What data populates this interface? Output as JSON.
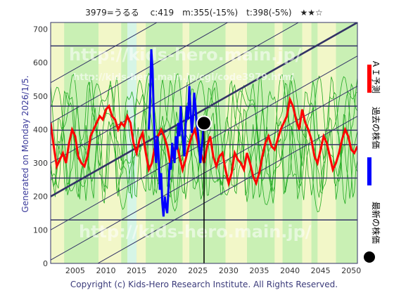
{
  "header": {
    "title": "3979=うるる　 c:419　m:355(-15%)　t:398(-5%)　★★☆"
  },
  "side_label": "Generated on Monday 2026/1/5.",
  "footer": "Copyright (c) Kids-Hero Research Institute. All Rights Reserved.",
  "watermarks": [
    "http://kids-hero.main.jp/",
    "http://kids-hero.main.jp/cgi/code3979.html",
    "http://kids-hero.main.jp/"
  ],
  "legend": [
    {
      "label": "ＡＩ予測",
      "color": "#ff0000"
    },
    {
      "label": "過去の株価",
      "color": "#0000ff"
    },
    {
      "label": "最新の株価",
      "color": "#000000"
    }
  ],
  "colors": {
    "plot_bg": "#c9f0b4",
    "band_light": "#f2f7c8",
    "band_cyan": "#d6f5e6",
    "grid": "#333366",
    "green_line": "#22aa22",
    "prediction": "#ff0000",
    "history": "#0000ff",
    "latest": "#000000"
  },
  "chart_data": {
    "type": "line",
    "x_ticks": [
      2005,
      2010,
      2015,
      2020,
      2025,
      2030,
      2035,
      2040,
      2045,
      2050
    ],
    "y_ticks": [
      0,
      100,
      200,
      300,
      400,
      500,
      600,
      700
    ],
    "xlim": [
      2001.0,
      2051.0
    ],
    "ylim": [
      0,
      720
    ],
    "horizontal_lines": [
      130,
      255,
      355,
      398,
      470,
      650
    ],
    "latest": {
      "x": 2026.0,
      "y": 419
    },
    "series": [
      {
        "name": "ＡＩ予測",
        "x": [
          2001.0,
          2001.5,
          2002.0,
          2002.5,
          2003.0,
          2003.5,
          2004.0,
          2004.5,
          2005.0,
          2005.5,
          2006.0,
          2006.5,
          2007.0,
          2007.5,
          2008.0,
          2008.5,
          2009.0,
          2009.5,
          2010.0,
          2010.5,
          2011.0,
          2011.5,
          2012.0,
          2012.5,
          2013.0,
          2013.5,
          2014.0,
          2014.5,
          2015.0,
          2015.5,
          2016.0,
          2016.5,
          2017.0,
          2017.5,
          2018.0,
          2018.5,
          2019.0,
          2019.5,
          2020.0,
          2020.5,
          2021.0,
          2021.5,
          2022.0,
          2022.5,
          2023.0,
          2023.5,
          2024.0,
          2024.5,
          2025.0,
          2025.5,
          2026.0,
          2026.5,
          2027.0,
          2027.5,
          2028.0,
          2028.5,
          2029.0,
          2029.5,
          2030.0,
          2030.5,
          2031.0,
          2031.5,
          2032.0,
          2032.5,
          2033.0,
          2033.5,
          2034.0,
          2034.5,
          2035.0,
          2035.5,
          2036.0,
          2036.5,
          2037.0,
          2037.5,
          2038.0,
          2038.5,
          2039.0,
          2039.5,
          2040.0,
          2040.5,
          2041.0,
          2041.5,
          2042.0,
          2042.5,
          2043.0,
          2043.5,
          2044.0,
          2044.5,
          2045.0,
          2045.5,
          2046.0,
          2046.5,
          2047.0,
          2047.5,
          2048.0,
          2048.5,
          2049.0,
          2049.5,
          2050.0,
          2050.5,
          2051.0
        ],
        "values": [
          420,
          350,
          290,
          310,
          330,
          300,
          360,
          400,
          380,
          320,
          300,
          290,
          320,
          380,
          400,
          420,
          440,
          430,
          460,
          470,
          440,
          430,
          400,
          420,
          410,
          440,
          420,
          360,
          330,
          370,
          390,
          330,
          280,
          300,
          350,
          380,
          400,
          380,
          350,
          300,
          330,
          360,
          320,
          280,
          310,
          350,
          380,
          400,
          360,
          330,
          300,
          350,
          380,
          320,
          290,
          320,
          330,
          280,
          240,
          270,
          330,
          310,
          300,
          280,
          330,
          300,
          260,
          240,
          270,
          320,
          360,
          380,
          350,
          340,
          370,
          400,
          420,
          440,
          490,
          470,
          430,
          400,
          460,
          420,
          400,
          370,
          320,
          300,
          340,
          380,
          360,
          320,
          280,
          300,
          330,
          370,
          400,
          380,
          340,
          330,
          350
        ]
      },
      {
        "name": "過去の株価",
        "x": [
          2017.0,
          2017.2,
          2017.4,
          2017.6,
          2017.8,
          2018.0,
          2018.2,
          2018.4,
          2018.6,
          2018.8,
          2019.0,
          2019.2,
          2019.4,
          2019.6,
          2019.8,
          2020.0,
          2020.2,
          2020.4,
          2020.6,
          2020.8,
          2021.0,
          2021.2,
          2021.4,
          2021.6,
          2021.8,
          2022.0,
          2022.2,
          2022.4,
          2022.6,
          2022.8,
          2023.0,
          2023.2,
          2023.4,
          2023.6,
          2023.8,
          2024.0,
          2024.2,
          2024.4,
          2024.6,
          2024.8,
          2025.0,
          2025.2,
          2025.4,
          2025.6,
          2025.8,
          2026.0
        ],
        "values": [
          400,
          480,
          640,
          580,
          450,
          350,
          300,
          380,
          320,
          220,
          270,
          180,
          140,
          200,
          170,
          150,
          220,
          300,
          280,
          360,
          330,
          300,
          380,
          340,
          420,
          380,
          470,
          400,
          360,
          320,
          410,
          470,
          430,
          530,
          460,
          390,
          430,
          510,
          470,
          420,
          390,
          350,
          300,
          340,
          380,
          419
        ]
      }
    ]
  }
}
